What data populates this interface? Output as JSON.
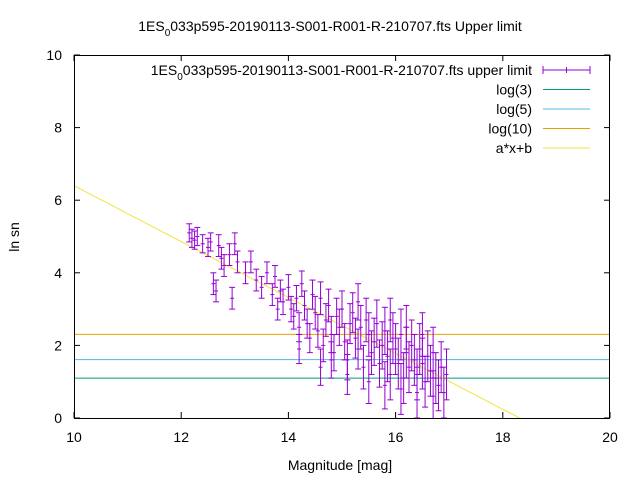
{
  "chart_data": {
    "type": "scatter",
    "title_prefix": "1ES",
    "title_sub": "0",
    "title_suffix": "033p595-20190113-S001-R001-R-210707.fts Upper limit",
    "xlabel": "Magnitude [mag]",
    "ylabel": "ln sn",
    "xlim": [
      10,
      20
    ],
    "ylim": [
      0,
      10
    ],
    "xticks": [
      "10",
      "12",
      "14",
      "16",
      "18",
      "20"
    ],
    "yticks": [
      "0",
      "2",
      "4",
      "6",
      "8",
      "10"
    ],
    "grid": false,
    "legend_position": "top-right",
    "legend": [
      {
        "prefix": "1ES",
        "sub": "0",
        "suffix": "033p595-20190113-S001-R001-R-210707.fts upper limit",
        "color": "#9400d3",
        "style": "errorbar"
      },
      {
        "label": "log(3)",
        "color": "#009e73",
        "style": "line"
      },
      {
        "label": "log(5)",
        "color": "#56b4e9",
        "style": "line"
      },
      {
        "label": "log(10)",
        "color": "#e69f00",
        "style": "line"
      },
      {
        "label": "a*x+b",
        "color": "#f0e442",
        "style": "line"
      }
    ],
    "hlines": [
      {
        "name": "log(3)",
        "y": 1.0986,
        "color": "#009e73"
      },
      {
        "name": "log(5)",
        "y": 1.6094,
        "color": "#56b4e9"
      },
      {
        "name": "log(10)",
        "y": 2.3026,
        "color": "#e69f00"
      }
    ],
    "fit_line": {
      "name": "a*x+b",
      "slope": -0.77,
      "intercept": 14.1,
      "color": "#f0e442"
    },
    "points": [
      [
        12.15,
        5.1,
        0.25
      ],
      [
        12.2,
        4.95,
        0.25
      ],
      [
        12.25,
        4.9,
        0.25
      ],
      [
        12.3,
        5.0,
        0.25
      ],
      [
        12.4,
        4.8,
        0.25
      ],
      [
        12.5,
        4.7,
        0.25
      ],
      [
        12.55,
        4.85,
        0.25
      ],
      [
        12.7,
        4.75,
        0.3
      ],
      [
        12.75,
        4.4,
        0.3
      ],
      [
        12.8,
        4.2,
        0.3
      ],
      [
        12.9,
        4.5,
        0.3
      ],
      [
        13.0,
        4.8,
        0.3
      ],
      [
        13.05,
        4.3,
        0.3
      ],
      [
        12.6,
        3.7,
        0.3
      ],
      [
        12.65,
        3.5,
        0.3
      ],
      [
        12.95,
        3.3,
        0.3
      ],
      [
        13.2,
        4.0,
        0.3
      ],
      [
        13.3,
        4.3,
        0.3
      ],
      [
        13.4,
        3.8,
        0.3
      ],
      [
        13.5,
        3.6,
        0.3
      ],
      [
        13.6,
        4.0,
        0.3
      ],
      [
        13.7,
        3.4,
        0.3
      ],
      [
        13.75,
        3.9,
        0.3
      ],
      [
        13.8,
        3.0,
        0.3
      ],
      [
        13.85,
        3.5,
        0.3
      ],
      [
        13.9,
        3.2,
        0.35
      ],
      [
        14.0,
        3.6,
        0.35
      ],
      [
        14.05,
        3.0,
        0.35
      ],
      [
        14.1,
        2.8,
        0.35
      ],
      [
        14.15,
        3.3,
        0.35
      ],
      [
        14.2,
        2.5,
        0.4
      ],
      [
        14.25,
        3.7,
        0.35
      ],
      [
        14.3,
        3.1,
        0.4
      ],
      [
        14.35,
        2.6,
        0.4
      ],
      [
        14.4,
        2.2,
        0.4
      ],
      [
        14.45,
        3.4,
        0.4
      ],
      [
        14.5,
        2.9,
        0.45
      ],
      [
        14.55,
        2.4,
        0.45
      ],
      [
        14.6,
        3.3,
        0.45
      ],
      [
        14.65,
        2.0,
        0.45
      ],
      [
        14.7,
        2.7,
        0.45
      ],
      [
        14.75,
        3.1,
        0.45
      ],
      [
        14.8,
        2.3,
        0.5
      ],
      [
        14.85,
        1.8,
        0.5
      ],
      [
        14.9,
        2.8,
        0.5
      ],
      [
        14.95,
        2.5,
        0.5
      ],
      [
        15.0,
        3.0,
        0.5
      ],
      [
        15.05,
        2.1,
        0.5
      ],
      [
        15.1,
        1.6,
        0.55
      ],
      [
        15.15,
        2.6,
        0.55
      ],
      [
        15.2,
        2.9,
        0.55
      ],
      [
        15.25,
        2.2,
        0.55
      ],
      [
        15.3,
        1.9,
        0.55
      ],
      [
        15.35,
        2.5,
        0.6
      ],
      [
        15.4,
        1.4,
        0.6
      ],
      [
        15.45,
        2.7,
        0.6
      ],
      [
        15.5,
        2.3,
        0.6
      ],
      [
        15.55,
        1.8,
        0.6
      ],
      [
        15.6,
        2.1,
        0.65
      ],
      [
        15.65,
        2.6,
        0.65
      ],
      [
        15.7,
        1.5,
        0.65
      ],
      [
        15.75,
        2.0,
        0.65
      ],
      [
        15.8,
        2.4,
        0.65
      ],
      [
        15.85,
        1.7,
        0.7
      ],
      [
        15.9,
        1.2,
        0.7
      ],
      [
        15.95,
        2.2,
        0.7
      ],
      [
        16.0,
        1.9,
        0.7
      ],
      [
        16.05,
        1.5,
        0.7
      ],
      [
        16.1,
        2.3,
        0.7
      ],
      [
        16.15,
        1.1,
        0.7
      ],
      [
        16.2,
        1.8,
        0.7
      ],
      [
        16.25,
        1.4,
        0.7
      ],
      [
        16.3,
        2.0,
        0.7
      ],
      [
        16.35,
        1.6,
        0.7
      ],
      [
        16.4,
        1.2,
        0.7
      ],
      [
        16.45,
        1.9,
        0.7
      ],
      [
        16.5,
        1.5,
        0.7
      ],
      [
        16.55,
        1.0,
        0.7
      ],
      [
        16.6,
        1.7,
        0.7
      ],
      [
        16.65,
        1.3,
        0.7
      ],
      [
        16.7,
        1.8,
        0.7
      ],
      [
        16.75,
        1.1,
        0.7
      ],
      [
        16.8,
        0.9,
        0.7
      ],
      [
        16.85,
        1.4,
        0.7
      ],
      [
        16.9,
        0.7,
        0.7
      ],
      [
        16.95,
        1.2,
        0.7
      ],
      [
        14.6,
        1.4,
        0.5
      ],
      [
        15.1,
        1.2,
        0.55
      ],
      [
        15.5,
        1.0,
        0.6
      ],
      [
        15.8,
        0.9,
        0.65
      ],
      [
        16.1,
        0.8,
        0.7
      ],
      [
        16.4,
        0.7,
        0.7
      ],
      [
        16.7,
        0.6,
        0.7
      ],
      [
        14.2,
        1.9,
        0.4
      ],
      [
        14.8,
        1.6,
        0.5
      ],
      [
        15.3,
        3.2,
        0.5
      ],
      [
        15.9,
        2.7,
        0.6
      ],
      [
        16.2,
        2.5,
        0.6
      ],
      [
        16.5,
        2.3,
        0.6
      ]
    ]
  }
}
